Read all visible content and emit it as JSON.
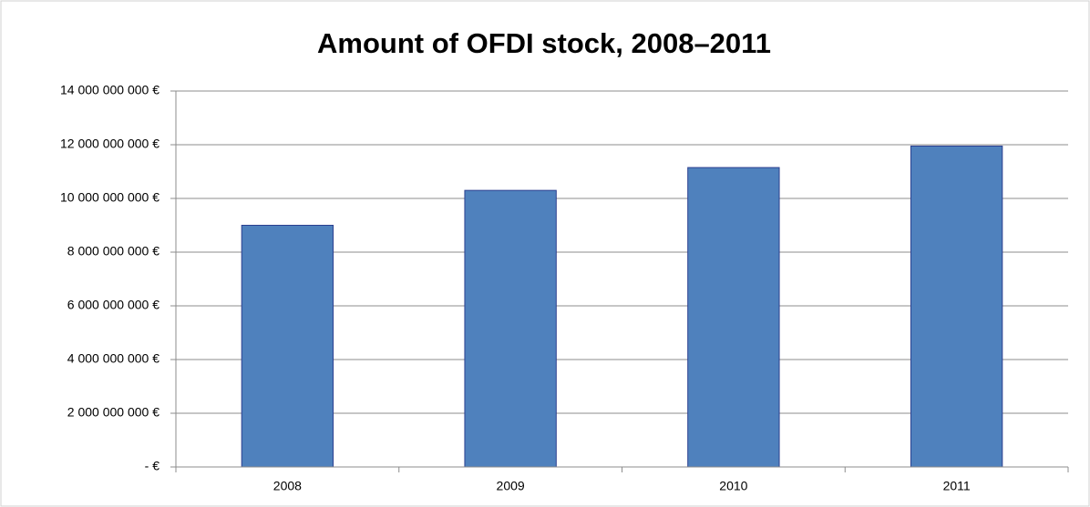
{
  "chart_data": {
    "type": "bar",
    "title": "Amount of OFDI stock, 2008–2011",
    "categories": [
      "2008",
      "2009",
      "2010",
      "2011"
    ],
    "values": [
      9000000000,
      10300000000,
      11150000000,
      11950000000
    ],
    "color": "#4f81bd",
    "ylim": [
      0,
      14000000000
    ],
    "yticks": [
      {
        "value": 0,
        "label": "- €"
      },
      {
        "value": 2000000000,
        "label": "2 000 000 000 €"
      },
      {
        "value": 4000000000,
        "label": "4 000 000 000 €"
      },
      {
        "value": 6000000000,
        "label": "6 000 000 000 €"
      },
      {
        "value": 8000000000,
        "label": "8 000 000 000 €"
      },
      {
        "value": 10000000000,
        "label": "10 000 000 000 €"
      },
      {
        "value": 12000000000,
        "label": "12 000 000 000 €"
      },
      {
        "value": 14000000000,
        "label": "14 000 000 000 €"
      }
    ],
    "grid": true
  }
}
